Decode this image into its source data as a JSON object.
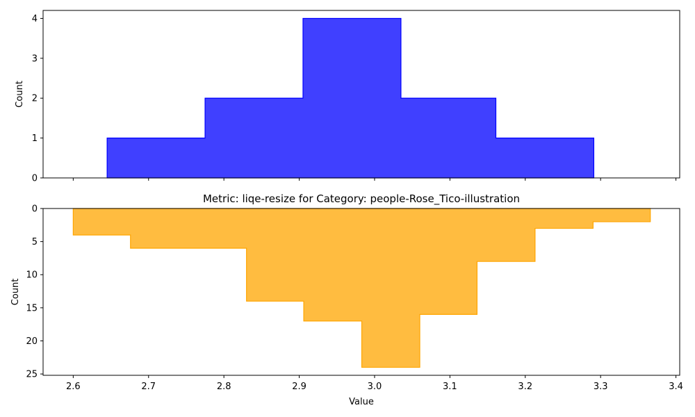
{
  "chart_data": [
    {
      "type": "histogram",
      "panel": "top",
      "title": "",
      "xlabel": "",
      "ylabel": "Count",
      "color": "#0000ff",
      "fill_opacity": 0.75,
      "x_ticks_labeled": false,
      "xlim": [
        2.56,
        3.405
      ],
      "ylim": [
        0,
        4.2
      ],
      "inverted_y": false,
      "bin_edges": [
        2.645,
        2.775,
        2.905,
        3.035,
        3.161,
        3.291
      ],
      "counts": [
        1,
        2,
        4,
        2,
        1
      ],
      "y_ticks": [
        0,
        1,
        2,
        3,
        4
      ],
      "x_ticks": [
        2.6,
        2.7,
        2.8,
        2.9,
        3.0,
        3.1,
        3.2,
        3.3,
        3.4
      ]
    },
    {
      "type": "histogram",
      "panel": "bottom",
      "title": "Metric: liqe-resize for Category: people-Rose_Tico-illustration",
      "xlabel": "Value",
      "ylabel": "Count",
      "color": "#ffa500",
      "fill_opacity": 0.75,
      "x_ticks_labeled": true,
      "xlim": [
        2.56,
        3.405
      ],
      "ylim": [
        0,
        25.2
      ],
      "inverted_y": true,
      "bin_edges": [
        2.6,
        2.676,
        2.753,
        2.83,
        2.906,
        2.983,
        3.06,
        3.136,
        3.213,
        3.29,
        3.366
      ],
      "counts": [
        4,
        6,
        6,
        14,
        17,
        24,
        16,
        8,
        3,
        2
      ],
      "y_ticks": [
        0,
        5,
        10,
        15,
        20,
        25
      ],
      "x_ticks": [
        2.6,
        2.7,
        2.8,
        2.9,
        3.0,
        3.1,
        3.2,
        3.3,
        3.4
      ]
    }
  ]
}
